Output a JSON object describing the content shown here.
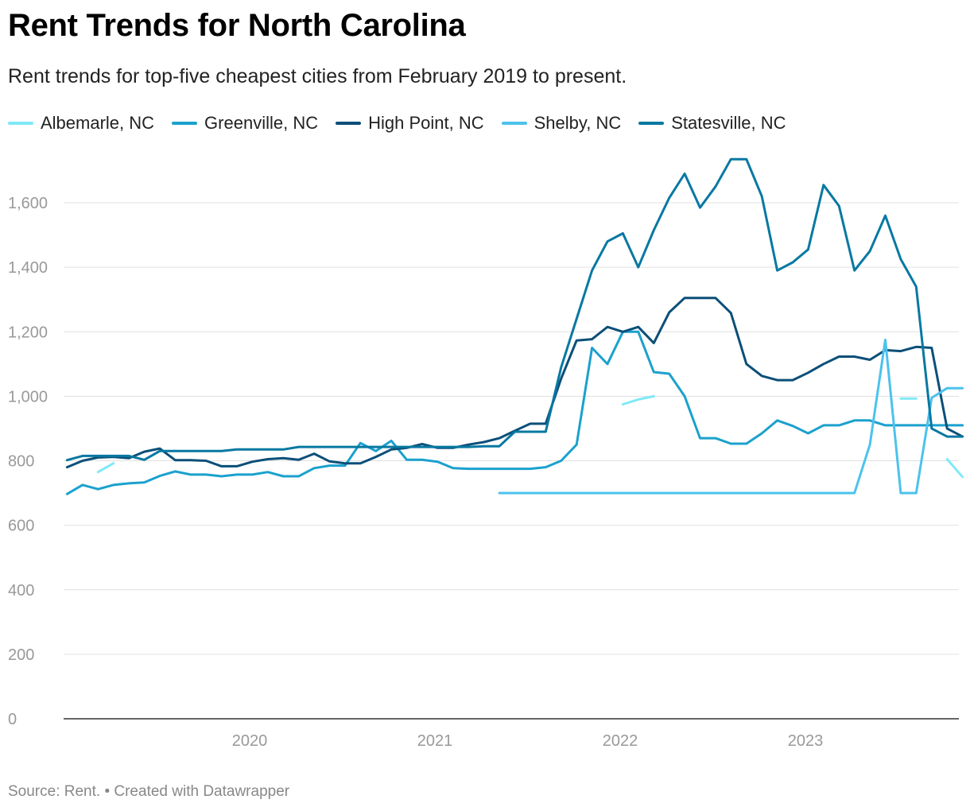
{
  "title": "Rent Trends for North Carolina",
  "subtitle": "Rent trends for top-five cheapest cities from February 2019 to present.",
  "footer": "Source: Rent. • Created with Datawrapper",
  "chart_data": {
    "type": "line",
    "title": "Rent Trends for North Carolina",
    "subtitle": "Rent trends for top-five cheapest cities from February 2019 to present.",
    "xlabel": "",
    "ylabel": "",
    "x_start": "2019-02",
    "x_ticks": [
      "2020",
      "2021",
      "2022",
      "2023"
    ],
    "y_ticks": [
      0,
      200,
      400,
      600,
      800,
      1000,
      1200,
      1400,
      1600
    ],
    "ylim": [
      0,
      1750
    ],
    "grid": "horizontal",
    "legend_position": "top-left",
    "series": [
      {
        "name": "Albemarle, NC",
        "color": "#7fe9f8",
        "values": [
          null,
          null,
          765,
          792,
          null,
          null,
          null,
          null,
          null,
          null,
          null,
          null,
          null,
          null,
          null,
          null,
          null,
          null,
          null,
          null,
          null,
          null,
          null,
          null,
          null,
          null,
          null,
          null,
          null,
          null,
          null,
          null,
          null,
          null,
          null,
          null,
          975,
          990,
          1000,
          null,
          null,
          null,
          null,
          null,
          null,
          null,
          null,
          null,
          null,
          null,
          null,
          null,
          null,
          null,
          993,
          993,
          null,
          805,
          750
        ]
      },
      {
        "name": "Greenville, NC",
        "color": "#1ba1cd",
        "values": [
          697,
          725,
          712,
          725,
          730,
          733,
          753,
          767,
          757,
          757,
          752,
          757,
          757,
          765,
          752,
          752,
          777,
          785,
          785,
          855,
          830,
          862,
          803,
          803,
          797,
          777,
          775,
          775,
          775,
          775,
          775,
          780,
          800,
          850,
          1150,
          1100,
          1200,
          1200,
          1075,
          1070,
          1000,
          870,
          870,
          853,
          853,
          885,
          925,
          908,
          885,
          910,
          910,
          925,
          925,
          910,
          910,
          910,
          910,
          910,
          910
        ]
      },
      {
        "name": "High Point, NC",
        "color": "#0b4f79",
        "values": [
          780,
          800,
          810,
          812,
          808,
          828,
          838,
          802,
          802,
          800,
          783,
          783,
          797,
          805,
          808,
          803,
          822,
          798,
          792,
          792,
          812,
          835,
          840,
          852,
          840,
          840,
          850,
          858,
          870,
          893,
          915,
          915,
          1055,
          1173,
          1177,
          1215,
          1200,
          1215,
          1165,
          1260,
          1305,
          1305,
          1305,
          1258,
          1100,
          1063,
          1050,
          1050,
          1073,
          1100,
          1123,
          1123,
          1113,
          1143,
          1140,
          1153,
          1150,
          900,
          875
        ]
      },
      {
        "name": "Shelby, NC",
        "color": "#4cc2ec",
        "values": [
          null,
          null,
          null,
          null,
          null,
          null,
          null,
          null,
          null,
          null,
          null,
          null,
          null,
          null,
          null,
          null,
          null,
          null,
          null,
          null,
          null,
          null,
          null,
          null,
          null,
          null,
          null,
          null,
          700,
          700,
          700,
          700,
          700,
          700,
          700,
          700,
          700,
          700,
          700,
          700,
          700,
          700,
          700,
          700,
          700,
          700,
          700,
          700,
          700,
          700,
          700,
          700,
          850,
          1175,
          700,
          700,
          995,
          1025,
          1025
        ]
      },
      {
        "name": "Statesville, NC",
        "color": "#0778a2",
        "values": [
          802,
          815,
          815,
          815,
          815,
          803,
          830,
          830,
          830,
          830,
          830,
          835,
          835,
          835,
          835,
          843,
          843,
          843,
          843,
          843,
          843,
          843,
          843,
          843,
          843,
          843,
          843,
          845,
          845,
          890,
          890,
          890,
          1090,
          1240,
          1390,
          1480,
          1505,
          1400,
          1515,
          1615,
          1690,
          1585,
          1650,
          1735,
          1735,
          1620,
          1390,
          1415,
          1455,
          1655,
          1590,
          1390,
          1450,
          1560,
          1425,
          1340,
          900,
          875,
          875
        ]
      }
    ]
  }
}
